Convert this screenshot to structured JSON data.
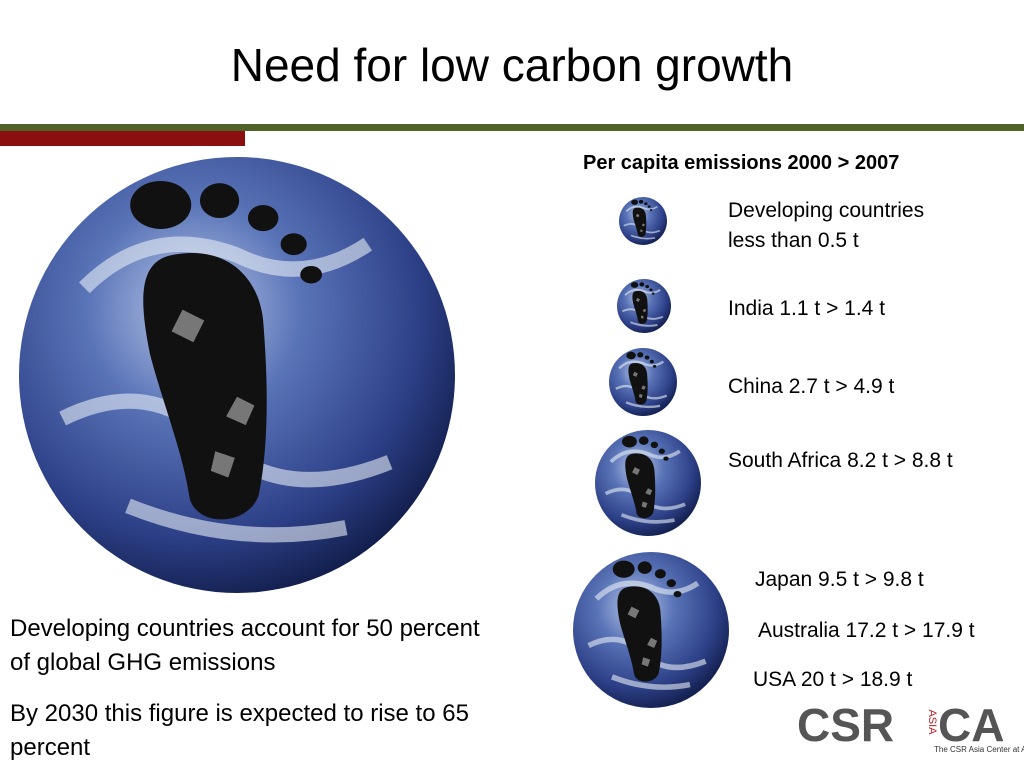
{
  "header": {
    "title": "Need for low carbon growth"
  },
  "panel": {
    "heading": "Per capita emissions 2000 > 2007",
    "items": [
      {
        "lines": [
          "Developing countries",
          "less than 0.5 t"
        ]
      },
      {
        "lines": [
          "India 1.1 t > 1.4 t"
        ]
      },
      {
        "lines": [
          "China 2.7 t > 4.9 t"
        ]
      },
      {
        "lines": [
          "South Africa 8.2 t > 8.8 t"
        ]
      },
      {
        "lines": [
          "Japan 9.5 t > 9.8 t"
        ]
      },
      {
        "lines": [
          "Australia 17.2 t > 17.9 t"
        ]
      },
      {
        "lines": [
          "USA 20 t > 18.9 t"
        ]
      }
    ]
  },
  "body": {
    "paragraphs": [
      "Developing countries account for 50 percent of global GHG emissions",
      "By 2030 this figure is expected to rise to 65 percent"
    ]
  },
  "logo": {
    "left": "CSR",
    "middle": "ASIA",
    "right": "CA",
    "caption": "The CSR Asia Center at AIT"
  }
}
